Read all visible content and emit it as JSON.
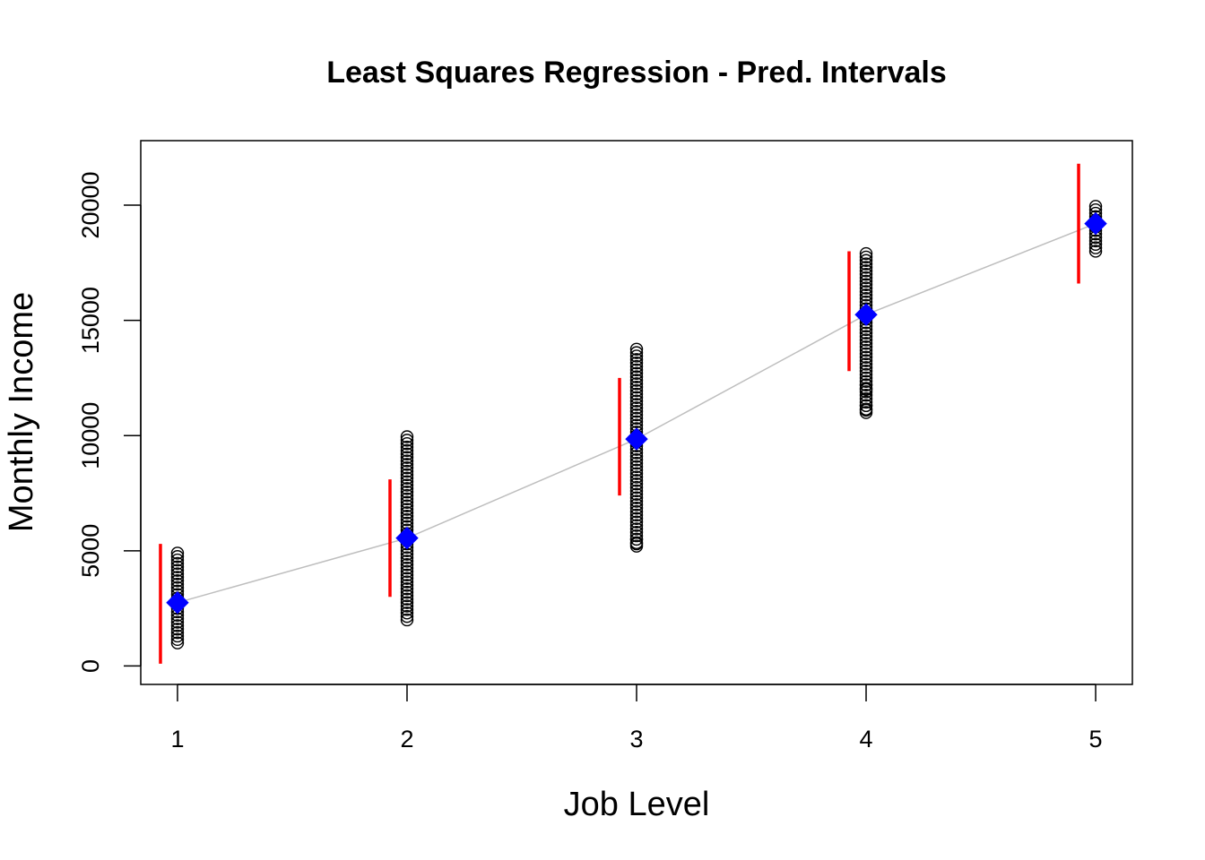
{
  "chart_data": {
    "type": "scatter",
    "title": "Least Squares Regression - Pred. Intervals",
    "xlabel": "Job Level",
    "ylabel": "Monthly Income",
    "xlim": [
      0.84,
      5.16
    ],
    "ylim": [
      -800,
      22800
    ],
    "xticks": [
      1,
      2,
      3,
      4,
      5
    ],
    "yticks": [
      0,
      5000,
      10000,
      15000,
      20000
    ],
    "grid": false,
    "legend": "none",
    "colors": {
      "points": "#000000",
      "fit_line": "#bebebe",
      "fitted": "#0000ff",
      "interval": "#ff0000"
    },
    "observations": [
      {
        "x": 1,
        "y_min": 1000,
        "y_max": 5000
      },
      {
        "x": 2,
        "y_min": 2000,
        "y_max": 10000
      },
      {
        "x": 3,
        "y_min": 5200,
        "y_max": 13800,
        "extra": [
          5300,
          5500
        ]
      },
      {
        "x": 4,
        "y_min": 11000,
        "y_max": 18000,
        "extra": [
          11100,
          11300,
          12000,
          12200
        ]
      },
      {
        "x": 5,
        "y_min": 18000,
        "y_max": 20000
      }
    ],
    "fitted": [
      {
        "x": 1,
        "y": 2750
      },
      {
        "x": 2,
        "y": 5550
      },
      {
        "x": 3,
        "y": 9850
      },
      {
        "x": 4,
        "y": 15250
      },
      {
        "x": 5,
        "y": 19200
      }
    ],
    "prediction_intervals": [
      {
        "x": 1,
        "lower": 100,
        "upper": 5300
      },
      {
        "x": 2,
        "lower": 3000,
        "upper": 8100
      },
      {
        "x": 3,
        "lower": 7400,
        "upper": 12500
      },
      {
        "x": 4,
        "lower": 12800,
        "upper": 18000
      },
      {
        "x": 5,
        "lower": 16600,
        "upper": 21800
      }
    ]
  }
}
